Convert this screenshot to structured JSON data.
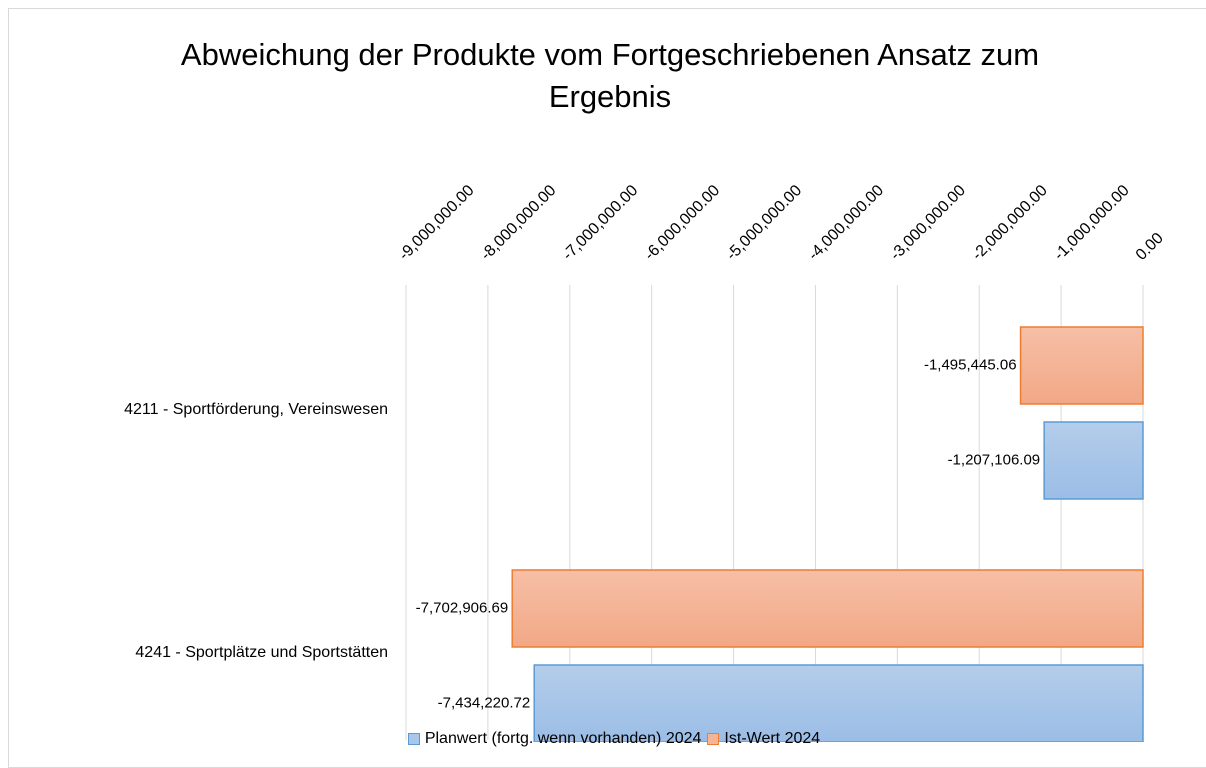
{
  "chart_data": {
    "type": "bar",
    "orientation": "horizontal",
    "title": "Abweichung der Produkte vom Fortgeschriebenen Ansatz zum Ergebnis",
    "categories": [
      "4211 - Sportförderung, Vereinswesen",
      "4241 - Sportplätze und Sportstätten"
    ],
    "series": [
      {
        "name": "Planwert (fortg. wenn vorhanden) 2024",
        "color": "#5b9bd5",
        "values": [
          -1207106.09,
          -7434220.72
        ],
        "value_labels": [
          "-1,207,106.09",
          "-7,434,220.72"
        ]
      },
      {
        "name": "Ist-Wert 2024",
        "color": "#ed7d31",
        "values": [
          -1495445.06,
          -7702906.69
        ],
        "value_labels": [
          "-1,495,445.06",
          "-7,702,906.69"
        ]
      }
    ],
    "xlim": [
      -9000000,
      0
    ],
    "xticks": [
      {
        "value": -9000000,
        "label": "-9,000,000.00"
      },
      {
        "value": -8000000,
        "label": "-8,000,000.00"
      },
      {
        "value": -7000000,
        "label": "-7,000,000.00"
      },
      {
        "value": -6000000,
        "label": "-6,000,000.00"
      },
      {
        "value": -5000000,
        "label": "-5,000,000.00"
      },
      {
        "value": -4000000,
        "label": "-4,000,000.00"
      },
      {
        "value": -3000000,
        "label": "-3,000,000.00"
      },
      {
        "value": -2000000,
        "label": "-2,000,000.00"
      },
      {
        "value": -1000000,
        "label": "-1,000,000.00"
      },
      {
        "value": 0,
        "label": "0.00"
      }
    ],
    "grid": true,
    "legend": "bottom"
  }
}
